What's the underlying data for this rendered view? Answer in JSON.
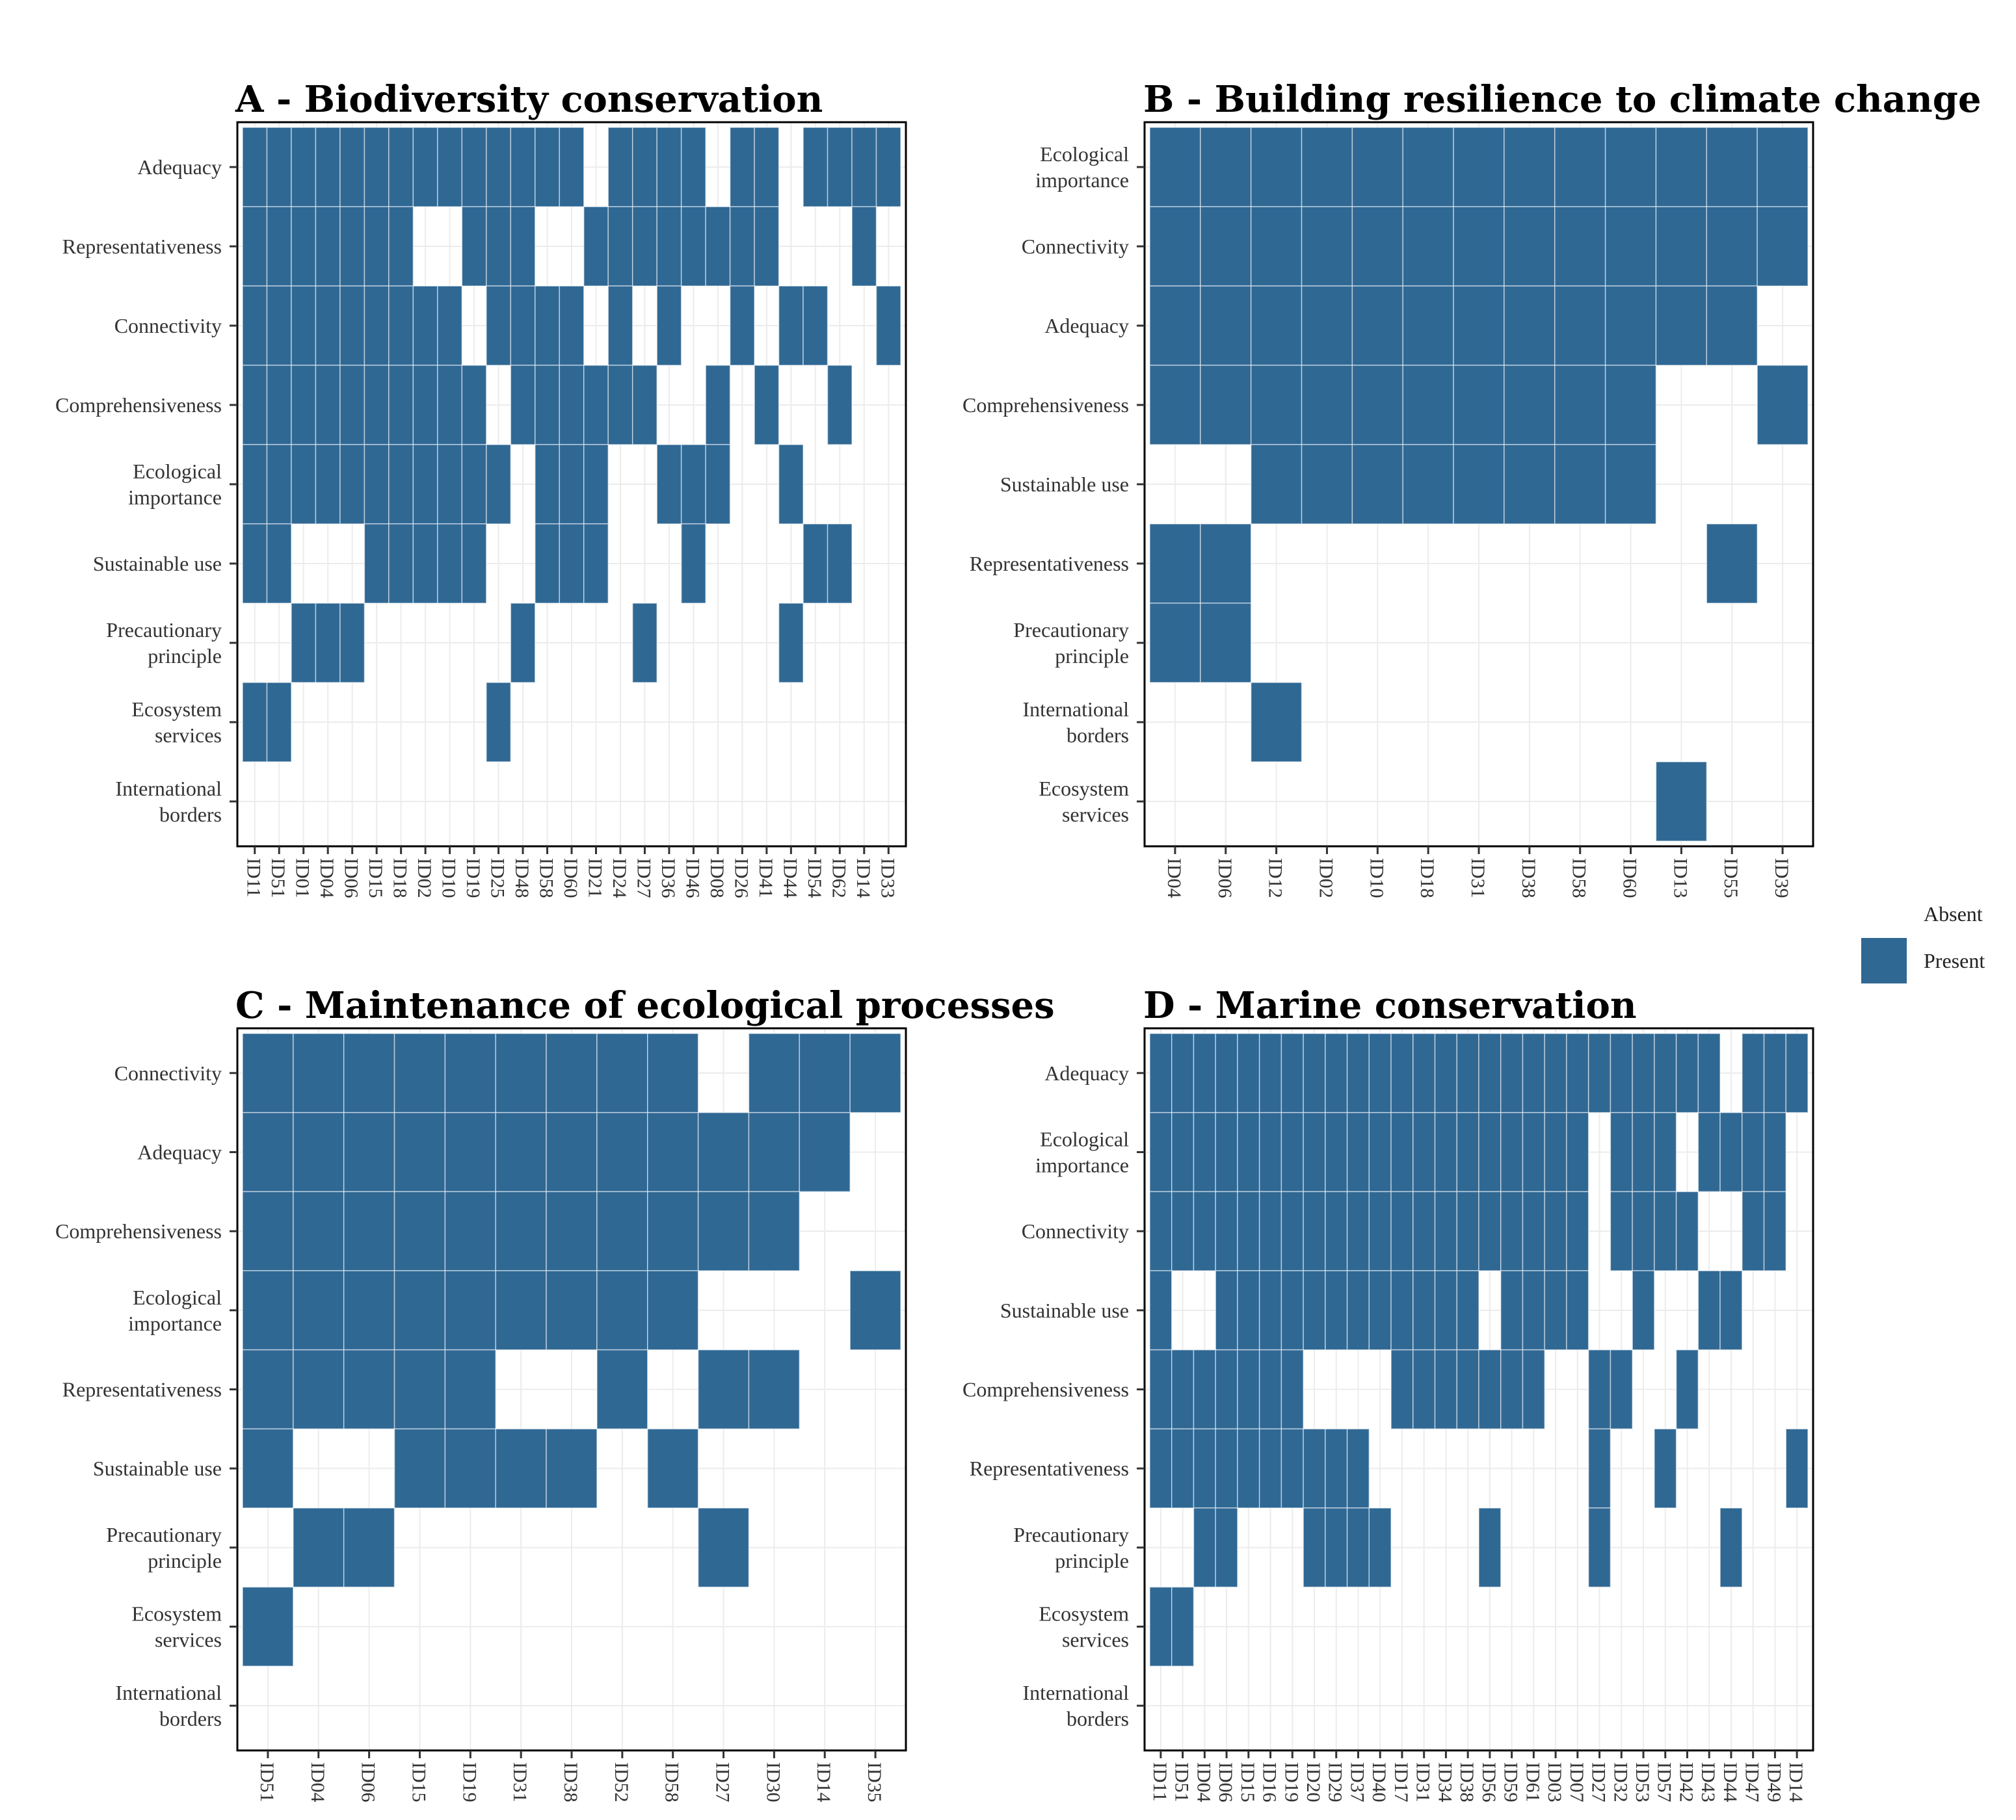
{
  "legend": {
    "entries": [
      {
        "label": "Absent",
        "color": "#ffffff"
      },
      {
        "label": "Present",
        "color": "#306894"
      }
    ]
  },
  "chart_data": [
    {
      "type": "heatmap",
      "title": "A - Biodiversity conservation",
      "y_categories": [
        "Adequacy",
        "Representativeness",
        "Connectivity",
        "Comprehensiveness",
        "Ecological importance",
        "Sustainable use",
        "Precautionary principle",
        "Ecosystem services",
        "International borders"
      ],
      "x_categories": [
        "ID11",
        "ID51",
        "ID01",
        "ID04",
        "ID06",
        "ID15",
        "ID18",
        "ID02",
        "ID10",
        "ID19",
        "ID25",
        "ID48",
        "ID58",
        "ID60",
        "ID21",
        "ID24",
        "ID27",
        "ID36",
        "ID46",
        "ID08",
        "ID26",
        "ID41",
        "ID44",
        "ID54",
        "ID62",
        "ID14",
        "ID33"
      ],
      "present": [
        [
          1,
          1,
          1,
          1,
          1,
          1,
          1,
          1,
          1,
          1,
          1,
          1,
          1,
          1,
          0,
          1,
          1,
          1,
          1,
          0,
          1,
          1,
          0,
          1,
          1,
          1,
          1
        ],
        [
          1,
          1,
          1,
          1,
          1,
          1,
          1,
          0,
          0,
          1,
          1,
          1,
          0,
          0,
          1,
          1,
          1,
          1,
          1,
          1,
          1,
          1,
          0,
          0,
          0,
          1,
          0
        ],
        [
          1,
          1,
          1,
          1,
          1,
          1,
          1,
          1,
          1,
          0,
          1,
          1,
          1,
          1,
          0,
          1,
          0,
          1,
          0,
          0,
          1,
          0,
          1,
          1,
          0,
          0,
          1
        ],
        [
          1,
          1,
          1,
          1,
          1,
          1,
          1,
          1,
          1,
          1,
          0,
          1,
          1,
          1,
          1,
          1,
          1,
          0,
          0,
          1,
          0,
          1,
          0,
          0,
          1,
          0,
          0
        ],
        [
          1,
          1,
          1,
          1,
          1,
          1,
          1,
          1,
          1,
          1,
          1,
          0,
          1,
          1,
          1,
          0,
          0,
          1,
          1,
          1,
          0,
          0,
          1,
          0,
          0,
          0,
          0
        ],
        [
          1,
          1,
          0,
          0,
          0,
          1,
          1,
          1,
          1,
          1,
          0,
          0,
          1,
          1,
          1,
          0,
          0,
          0,
          1,
          0,
          0,
          0,
          0,
          1,
          1,
          0,
          0
        ],
        [
          0,
          0,
          1,
          1,
          1,
          0,
          0,
          0,
          0,
          0,
          0,
          1,
          0,
          0,
          0,
          0,
          1,
          0,
          0,
          0,
          0,
          0,
          1,
          0,
          0,
          0,
          0
        ],
        [
          1,
          1,
          0,
          0,
          0,
          0,
          0,
          0,
          0,
          0,
          1,
          0,
          0,
          0,
          0,
          0,
          0,
          0,
          0,
          0,
          0,
          0,
          0,
          0,
          0,
          0,
          0
        ],
        [
          0,
          0,
          0,
          0,
          0,
          0,
          0,
          0,
          0,
          0,
          0,
          0,
          0,
          0,
          0,
          0,
          0,
          0,
          0,
          0,
          0,
          0,
          0,
          0,
          0,
          0,
          0
        ]
      ]
    },
    {
      "type": "heatmap",
      "title": "B - Building resilience to climate change",
      "y_categories": [
        "Ecological importance",
        "Connectivity",
        "Adequacy",
        "Comprehensiveness",
        "Sustainable use",
        "Representativeness",
        "Precautionary principle",
        "International borders",
        "Ecosystem services"
      ],
      "x_categories": [
        "ID04",
        "ID06",
        "ID12",
        "ID02",
        "ID10",
        "ID18",
        "ID31",
        "ID38",
        "ID58",
        "ID60",
        "ID13",
        "ID55",
        "ID39"
      ],
      "present": [
        [
          1,
          1,
          1,
          1,
          1,
          1,
          1,
          1,
          1,
          1,
          1,
          1,
          1
        ],
        [
          1,
          1,
          1,
          1,
          1,
          1,
          1,
          1,
          1,
          1,
          1,
          1,
          1
        ],
        [
          1,
          1,
          1,
          1,
          1,
          1,
          1,
          1,
          1,
          1,
          1,
          1,
          0
        ],
        [
          1,
          1,
          1,
          1,
          1,
          1,
          1,
          1,
          1,
          1,
          0,
          0,
          1
        ],
        [
          0,
          0,
          1,
          1,
          1,
          1,
          1,
          1,
          1,
          1,
          0,
          0,
          0
        ],
        [
          1,
          1,
          0,
          0,
          0,
          0,
          0,
          0,
          0,
          0,
          0,
          1,
          0
        ],
        [
          1,
          1,
          0,
          0,
          0,
          0,
          0,
          0,
          0,
          0,
          0,
          0,
          0
        ],
        [
          0,
          0,
          1,
          0,
          0,
          0,
          0,
          0,
          0,
          0,
          0,
          0,
          0
        ],
        [
          0,
          0,
          0,
          0,
          0,
          0,
          0,
          0,
          0,
          0,
          1,
          0,
          0
        ]
      ]
    },
    {
      "type": "heatmap",
      "title": "C - Maintenance of ecological processes",
      "y_categories": [
        "Connectivity",
        "Adequacy",
        "Comprehensiveness",
        "Ecological importance",
        "Representativeness",
        "Sustainable use",
        "Precautionary principle",
        "Ecosystem services",
        "International borders"
      ],
      "x_categories": [
        "ID51",
        "ID04",
        "ID06",
        "ID15",
        "ID19",
        "ID31",
        "ID38",
        "ID52",
        "ID58",
        "ID27",
        "ID30",
        "ID14",
        "ID35"
      ],
      "present": [
        [
          1,
          1,
          1,
          1,
          1,
          1,
          1,
          1,
          1,
          0,
          1,
          1,
          1
        ],
        [
          1,
          1,
          1,
          1,
          1,
          1,
          1,
          1,
          1,
          1,
          1,
          1,
          0
        ],
        [
          1,
          1,
          1,
          1,
          1,
          1,
          1,
          1,
          1,
          1,
          1,
          0,
          0
        ],
        [
          1,
          1,
          1,
          1,
          1,
          1,
          1,
          1,
          1,
          0,
          0,
          0,
          1
        ],
        [
          1,
          1,
          1,
          1,
          1,
          0,
          0,
          1,
          0,
          1,
          1,
          0,
          0
        ],
        [
          1,
          0,
          0,
          1,
          1,
          1,
          1,
          0,
          1,
          0,
          0,
          0,
          0
        ],
        [
          0,
          1,
          1,
          0,
          0,
          0,
          0,
          0,
          0,
          1,
          0,
          0,
          0
        ],
        [
          1,
          0,
          0,
          0,
          0,
          0,
          0,
          0,
          0,
          0,
          0,
          0,
          0
        ],
        [
          0,
          0,
          0,
          0,
          0,
          0,
          0,
          0,
          0,
          0,
          0,
          0,
          0
        ]
      ]
    },
    {
      "type": "heatmap",
      "title": "D - Marine conservation",
      "y_categories": [
        "Adequacy",
        "Ecological importance",
        "Connectivity",
        "Sustainable use",
        "Comprehensiveness",
        "Representativeness",
        "Precautionary principle",
        "Ecosystem services",
        "International borders"
      ],
      "x_categories": [
        "ID11",
        "ID51",
        "ID04",
        "ID06",
        "ID15",
        "ID16",
        "ID19",
        "ID20",
        "ID29",
        "ID37",
        "ID40",
        "ID17",
        "ID31",
        "ID34",
        "ID38",
        "ID56",
        "ID59",
        "ID61",
        "ID03",
        "ID07",
        "ID27",
        "ID32",
        "ID53",
        "ID57",
        "ID42",
        "ID43",
        "ID44",
        "ID47",
        "ID49",
        "ID14"
      ],
      "present": [
        [
          1,
          1,
          1,
          1,
          1,
          1,
          1,
          1,
          1,
          1,
          1,
          1,
          1,
          1,
          1,
          1,
          1,
          1,
          1,
          1,
          1,
          1,
          1,
          1,
          1,
          1,
          0,
          1,
          1,
          1
        ],
        [
          1,
          1,
          1,
          1,
          1,
          1,
          1,
          1,
          1,
          1,
          1,
          1,
          1,
          1,
          1,
          1,
          1,
          1,
          1,
          1,
          0,
          1,
          1,
          1,
          0,
          1,
          1,
          1,
          1,
          0
        ],
        [
          1,
          1,
          1,
          1,
          1,
          1,
          1,
          1,
          1,
          1,
          1,
          1,
          1,
          1,
          1,
          1,
          1,
          1,
          1,
          1,
          0,
          1,
          1,
          1,
          1,
          0,
          0,
          1,
          1,
          0
        ],
        [
          1,
          0,
          0,
          1,
          1,
          1,
          1,
          1,
          1,
          1,
          1,
          1,
          1,
          1,
          1,
          0,
          1,
          1,
          1,
          1,
          0,
          0,
          1,
          0,
          0,
          1,
          1,
          0,
          0,
          0
        ],
        [
          1,
          1,
          1,
          1,
          1,
          1,
          1,
          0,
          0,
          0,
          0,
          1,
          1,
          1,
          1,
          1,
          1,
          1,
          0,
          0,
          1,
          1,
          0,
          0,
          1,
          0,
          0,
          0,
          0,
          0
        ],
        [
          1,
          1,
          1,
          1,
          1,
          1,
          1,
          1,
          1,
          1,
          0,
          0,
          0,
          0,
          0,
          0,
          0,
          0,
          0,
          0,
          1,
          0,
          0,
          1,
          0,
          0,
          0,
          0,
          0,
          1
        ],
        [
          0,
          0,
          1,
          1,
          0,
          0,
          0,
          1,
          1,
          1,
          1,
          0,
          0,
          0,
          0,
          1,
          0,
          0,
          0,
          0,
          1,
          0,
          0,
          0,
          0,
          0,
          1,
          0,
          0,
          0
        ],
        [
          1,
          1,
          0,
          0,
          0,
          0,
          0,
          0,
          0,
          0,
          0,
          0,
          0,
          0,
          0,
          0,
          0,
          0,
          0,
          0,
          0,
          0,
          0,
          0,
          0,
          0,
          0,
          0,
          0,
          0
        ],
        [
          0,
          0,
          0,
          0,
          0,
          0,
          0,
          0,
          0,
          0,
          0,
          0,
          0,
          0,
          0,
          0,
          0,
          0,
          0,
          0,
          0,
          0,
          0,
          0,
          0,
          0,
          0,
          0,
          0,
          0
        ]
      ]
    }
  ]
}
